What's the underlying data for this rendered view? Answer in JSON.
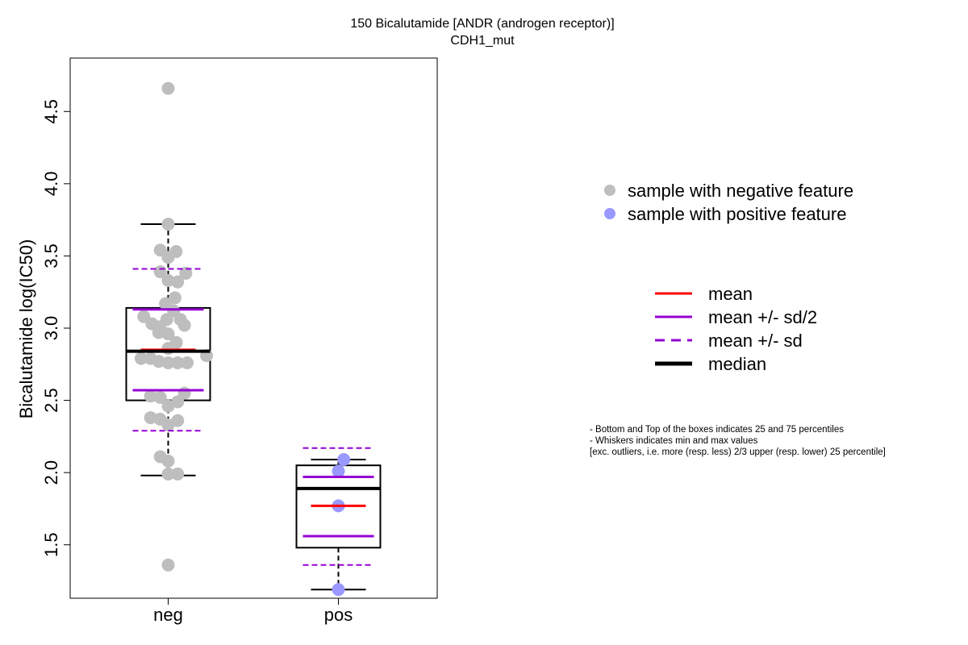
{
  "chart_data": {
    "type": "box",
    "title": "150 Bicalutamide [ANDR (androgen receptor)]",
    "subtitle": "CDH1_mut",
    "ylabel": "Bicalutamide log(IC50)",
    "xlabel": "",
    "ylim": [
      1.13,
      4.87
    ],
    "yticks": [
      "1.5",
      "2.0",
      "2.5",
      "3.0",
      "3.5",
      "4.0",
      "4.5"
    ],
    "categories": [
      "neg",
      "pos"
    ],
    "groups": [
      {
        "name": "neg",
        "color": "#bebebe",
        "q1": 2.5,
        "median": 2.84,
        "q3": 3.14,
        "whisker_low": 1.98,
        "whisker_high": 3.72,
        "mean": 2.85,
        "mean_minus_half_sd": 2.57,
        "mean_plus_half_sd": 3.13,
        "mean_minus_sd": 2.29,
        "mean_plus_sd": 3.41,
        "points": [
          4.66,
          3.72,
          3.54,
          3.53,
          3.49,
          3.39,
          3.38,
          3.33,
          3.32,
          3.21,
          3.17,
          3.12,
          3.08,
          3.06,
          3.06,
          3.03,
          3.02,
          3.01,
          2.97,
          2.96,
          2.9,
          2.86,
          2.81,
          2.79,
          2.79,
          2.77,
          2.76,
          2.76,
          2.76,
          2.53,
          2.52,
          2.55,
          2.49,
          2.46,
          2.38,
          2.37,
          2.36,
          2.33,
          2.11,
          2.08,
          1.99,
          1.99,
          1.36
        ],
        "jitter": [
          0.0,
          0.0,
          -0.35,
          0.35,
          0.0,
          -0.35,
          0.78,
          0.0,
          0.42,
          0.3,
          -0.12,
          0.24,
          -1.08,
          0.54,
          -0.06,
          -0.72,
          0.72,
          -0.36,
          -0.42,
          0.0,
          0.36,
          0.0,
          1.7,
          -1.2,
          -0.78,
          -0.42,
          0.0,
          0.42,
          0.84,
          -0.78,
          -0.35,
          0.72,
          0.42,
          0.0,
          -0.78,
          -0.36,
          0.42,
          0.0,
          -0.35,
          0.0,
          0.0,
          0.42,
          0.0
        ]
      },
      {
        "name": "pos",
        "color": "#9999ff",
        "q1": 1.48,
        "median": 1.89,
        "q3": 2.05,
        "whisker_low": 1.19,
        "whisker_high": 2.09,
        "mean": 1.77,
        "mean_minus_half_sd": 1.56,
        "mean_plus_half_sd": 1.97,
        "mean_minus_sd": 1.36,
        "mean_plus_sd": 2.17,
        "points": [
          2.09,
          2.01,
          1.77,
          1.19
        ],
        "jitter": [
          0.24,
          0.0,
          0.0,
          0.0
        ]
      }
    ],
    "legend_points": [
      {
        "label": "sample with negative feature",
        "color": "#bebebe"
      },
      {
        "label": "sample with positive feature",
        "color": "#9999ff"
      }
    ],
    "legend_lines": [
      {
        "label": "mean",
        "color": "#ff0000",
        "style": "solid"
      },
      {
        "label": "mean +/- sd/2",
        "color": "#9400d3",
        "style": "solid"
      },
      {
        "label": "mean +/- sd",
        "color": "#9400d3",
        "style": "dashed"
      },
      {
        "label": "median",
        "color": "#000000",
        "style": "thick"
      }
    ],
    "notes": [
      "- Bottom and Top of the boxes indicates 25 and 75 percentiles",
      "- Whiskers indicates min and max values",
      "[exc. outliers, i.e. more (resp. less) 2/3 upper (resp. lower) 25 percentile]"
    ]
  }
}
